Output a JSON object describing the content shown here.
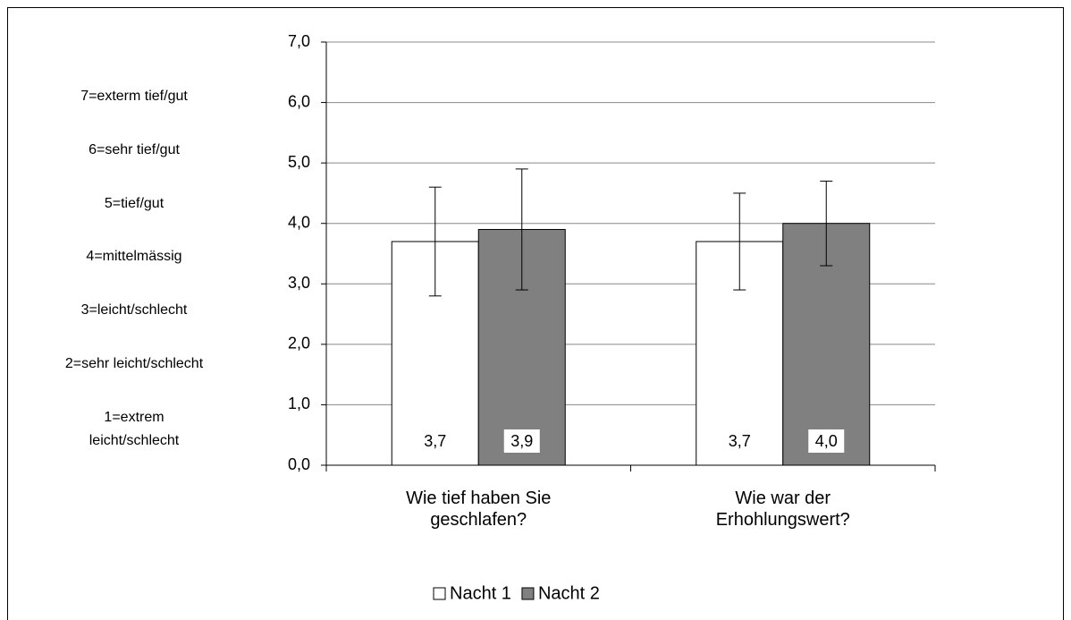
{
  "chart_data": {
    "type": "bar",
    "categories": [
      "Wie tief haben Sie\ngeschlafen?",
      "Wie war der\nErhohlungswert?"
    ],
    "series": [
      {
        "name": "Nacht 1",
        "color": "#ffffff",
        "values": [
          3.7,
          3.7
        ],
        "value_labels": [
          "3,7",
          "3,7"
        ],
        "errors": [
          0.9,
          0.8
        ]
      },
      {
        "name": "Nacht 2",
        "color": "#808080",
        "values": [
          3.9,
          4.0
        ],
        "value_labels": [
          "3,9",
          "4,0"
        ],
        "errors": [
          1.0,
          0.7
        ]
      }
    ],
    "ylim": [
      0,
      7
    ],
    "yticks": [
      {
        "value": 0,
        "label": "0,0"
      },
      {
        "value": 1,
        "label": "1,0"
      },
      {
        "value": 2,
        "label": "2,0"
      },
      {
        "value": 3,
        "label": "3,0"
      },
      {
        "value": 4,
        "label": "4,0"
      },
      {
        "value": 5,
        "label": "5,0"
      },
      {
        "value": 6,
        "label": "6,0"
      },
      {
        "value": 7,
        "label": "7,0"
      }
    ],
    "grid": true,
    "legend": "bottom",
    "annotations": [
      "7=exterm tief/gut",
      "6=sehr tief/gut",
      "5=tief/gut",
      "4=mittelmässig",
      "3=leicht/schlecht",
      "2=sehr leicht/schlecht",
      "1=extrem\nleicht/schlecht"
    ]
  }
}
